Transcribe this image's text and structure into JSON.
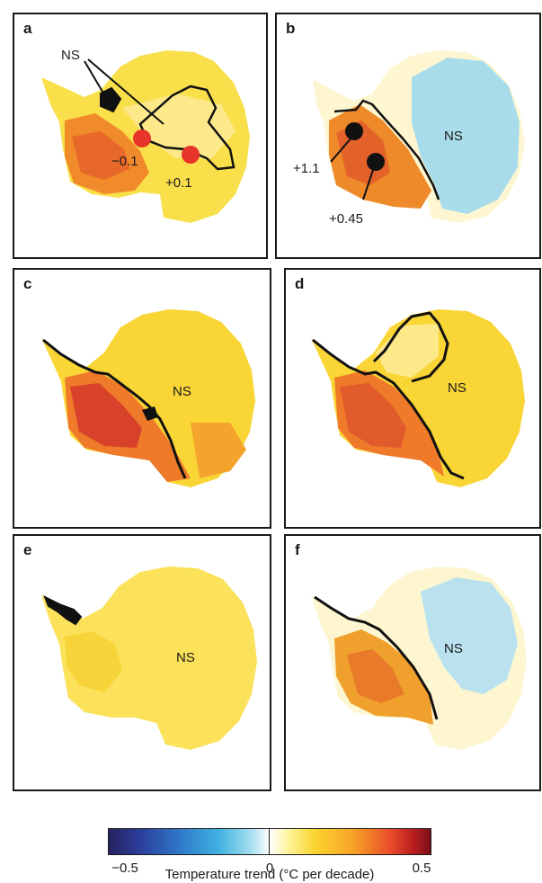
{
  "panels": [
    {
      "label": "a",
      "annotations": {
        "ns": "NS",
        "v1": "−0.1",
        "v2": "+0.1"
      }
    },
    {
      "label": "b",
      "annotations": {
        "ns": "NS",
        "v1": "+1.1",
        "v2": "+0.45"
      }
    },
    {
      "label": "c",
      "annotations": {
        "ns": "NS"
      }
    },
    {
      "label": "d",
      "annotations": {
        "ns": "NS"
      }
    },
    {
      "label": "e",
      "annotations": {
        "ns": "NS"
      }
    },
    {
      "label": "f",
      "annotations": {
        "ns": "NS"
      }
    }
  ],
  "colorbar": {
    "title": "Temperature trend (°C per decade)",
    "ticks": [
      "−0.5",
      "0",
      "0.5"
    ],
    "range": [
      -0.5,
      0.5
    ]
  },
  "colors": {
    "cool": "#a9dceb",
    "neutral": "#fdf6c8",
    "pale_yellow": "#fbe98a",
    "yellow": "#f9dc3c",
    "orange": "#f0a02c",
    "red_orange": "#e4602a",
    "red": "#cf3526",
    "marker_red": "#e8352b",
    "outline": "#111111"
  }
}
